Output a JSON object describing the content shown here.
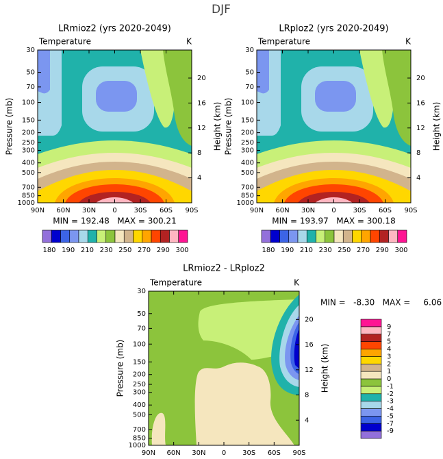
{
  "title": "DJF",
  "chart_data": [
    {
      "type": "contour",
      "title": "LRmioz2 (yrs 2020-2049)",
      "left_label": "Temperature",
      "right_label": "K",
      "ylabel": "Pressure (mb)",
      "y2label": "Height (km)",
      "stats": "MIN = 192.48   MAX = 300.21",
      "xlim": [
        90,
        -90
      ],
      "xticks": [
        {
          "value": 90,
          "label": "90N"
        },
        {
          "value": 60,
          "label": "60N"
        },
        {
          "value": 30,
          "label": "30N"
        },
        0,
        {
          "value": -30,
          "label": "30S"
        },
        {
          "value": -60,
          "label": "60S"
        },
        {
          "value": -90,
          "label": "90S"
        }
      ],
      "ylim": [
        1000,
        30
      ],
      "ylog": true,
      "yticks": [
        30,
        50,
        70,
        100,
        150,
        200,
        250,
        300,
        400,
        500,
        700,
        850,
        1000
      ],
      "y2lim": [
        0,
        24.5
      ],
      "y2ticks": [
        4,
        8,
        12,
        16,
        20
      ],
      "colorbar": {
        "orientation": "horizontal",
        "levels": [
          180,
          190,
          210,
          230,
          250,
          270,
          290,
          300
        ],
        "colors": [
          "#9370db",
          "#0000cd",
          "#3c64e6",
          "#7b96f0",
          "#a8d8ea",
          "#20b2aa",
          "#c8f078",
          "#8cc43c",
          "#f5e6be",
          "#d2b48c",
          "#ffd700",
          "#ffa500",
          "#ff4500",
          "#b22222",
          "#ffb6c1",
          "#ff1493"
        ]
      }
    },
    {
      "type": "contour",
      "title": "LRploz2 (yrs 2020-2049)",
      "left_label": "Temperature",
      "right_label": "K",
      "ylabel": "Pressure (mb)",
      "y2label": "Height (km)",
      "stats": "MIN = 193.97   MAX = 300.18",
      "xlim": [
        90,
        -90
      ],
      "xticks": [
        {
          "value": 90,
          "label": "90N"
        },
        {
          "value": 60,
          "label": "60N"
        },
        {
          "value": 30,
          "label": "30N"
        },
        0,
        {
          "value": -30,
          "label": "30S"
        },
        {
          "value": -60,
          "label": "60S"
        },
        {
          "value": -90,
          "label": "90S"
        }
      ],
      "ylim": [
        1000,
        30
      ],
      "ylog": true,
      "yticks": [
        30,
        50,
        70,
        100,
        150,
        200,
        250,
        300,
        400,
        500,
        700,
        850,
        1000
      ],
      "y2lim": [
        0,
        24.5
      ],
      "y2ticks": [
        4,
        8,
        12,
        16,
        20
      ],
      "colorbar": {
        "orientation": "horizontal",
        "levels": [
          180,
          190,
          210,
          230,
          250,
          270,
          290,
          300
        ],
        "colors": [
          "#9370db",
          "#0000cd",
          "#3c64e6",
          "#7b96f0",
          "#a8d8ea",
          "#20b2aa",
          "#c8f078",
          "#8cc43c",
          "#f5e6be",
          "#d2b48c",
          "#ffd700",
          "#ffa500",
          "#ff4500",
          "#b22222",
          "#ffb6c1",
          "#ff1493"
        ]
      }
    },
    {
      "type": "contour",
      "title": "LRmioz2 - LRploz2",
      "left_label": "Temperature",
      "right_label": "K",
      "ylabel": "Pressure (mb)",
      "y2label": "Height (km)",
      "stats": "MIN =   -8.30   MAX =     6.06",
      "xlim": [
        90,
        -90
      ],
      "xticks": [
        {
          "value": 90,
          "label": "90N"
        },
        {
          "value": 60,
          "label": "60N"
        },
        {
          "value": 30,
          "label": "30N"
        },
        0,
        {
          "value": -30,
          "label": "30S"
        },
        {
          "value": -60,
          "label": "60S"
        },
        {
          "value": -90,
          "label": "90S"
        }
      ],
      "ylim": [
        1000,
        30
      ],
      "ylog": true,
      "yticks": [
        30,
        50,
        70,
        100,
        150,
        200,
        250,
        300,
        400,
        500,
        700,
        850,
        1000
      ],
      "y2lim": [
        0,
        24.5
      ],
      "y2ticks": [
        4,
        8,
        12,
        16,
        20
      ],
      "colorbar": {
        "orientation": "vertical",
        "levels": [
          -9,
          -7,
          -5,
          -4,
          -3,
          -2,
          -1,
          0,
          1,
          2,
          3,
          4,
          5,
          7,
          9
        ],
        "colors": [
          "#9370db",
          "#0000cd",
          "#3c64e6",
          "#7b96f0",
          "#a8d8ea",
          "#20b2aa",
          "#c8f078",
          "#8cc43c",
          "#f5e6be",
          "#d2b48c",
          "#ffd700",
          "#ffa500",
          "#ff4500",
          "#b22222",
          "#ffb6c1",
          "#ff1493"
        ]
      }
    }
  ]
}
